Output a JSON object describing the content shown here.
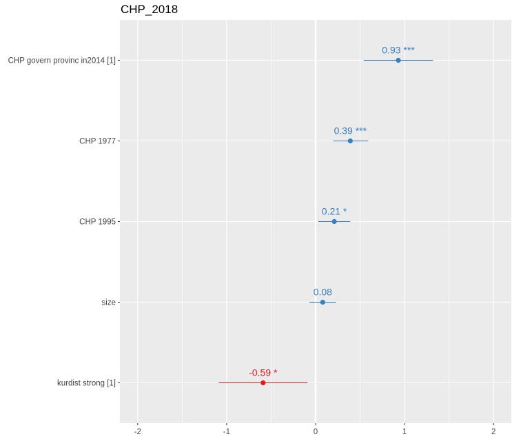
{
  "chart_data": {
    "type": "scatter",
    "title": "CHP_2018",
    "xlim": [
      -2.2,
      2.2
    ],
    "x_ticks": [
      -2,
      -1,
      0,
      1,
      2
    ],
    "x_tick_labels": [
      "-2",
      "-1",
      "0",
      "1",
      "2"
    ],
    "grid": true,
    "colors": {
      "positive": "#3a7fc0",
      "negative": "#e41a1c",
      "panel": "#ebebeb",
      "grid": "#ffffff"
    },
    "terms": [
      {
        "label": "CHP govern provinc in2014 [1]",
        "estimate": 0.93,
        "ci_low": 0.54,
        "ci_high": 1.32,
        "value_label": "0.93 ***"
      },
      {
        "label": "CHP 1977",
        "estimate": 0.39,
        "ci_low": 0.2,
        "ci_high": 0.59,
        "value_label": "0.39 ***"
      },
      {
        "label": "CHP 1995",
        "estimate": 0.21,
        "ci_low": 0.03,
        "ci_high": 0.39,
        "value_label": "0.21 *"
      },
      {
        "label": "size",
        "estimate": 0.08,
        "ci_low": -0.07,
        "ci_high": 0.23,
        "value_label": "0.08"
      },
      {
        "label": "kurdist strong [1]",
        "estimate": -0.59,
        "ci_low": -1.09,
        "ci_high": -0.09,
        "value_label": "-0.59 *"
      }
    ]
  }
}
